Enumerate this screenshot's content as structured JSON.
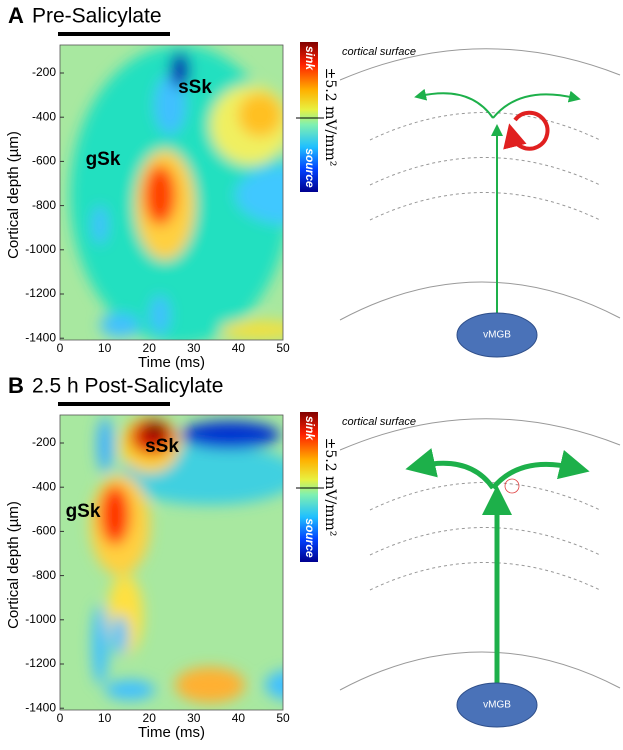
{
  "panels": [
    {
      "letter": "A",
      "title": "Pre-Salicylate",
      "y_label": "Cortical depth (µm)",
      "x_label": "Time (ms)",
      "yticks": [
        "-200",
        "-400",
        "-600",
        "-800",
        "-1000",
        "-1200",
        "-1400"
      ],
      "xticks": [
        "0",
        "10",
        "20",
        "30",
        "40",
        "50"
      ],
      "annotations": [
        "sSk",
        "gSk"
      ],
      "colorbar": {
        "top": "sink",
        "bottom": "source",
        "scale": "±5.2 mV/mm²"
      },
      "diagram": {
        "surface": "cortical surface",
        "node": "vMGB"
      }
    },
    {
      "letter": "B",
      "title": "2.5 h Post-Salicylate",
      "y_label": "Cortical depth (µm)",
      "x_label": "Time (ms)",
      "yticks": [
        "-200",
        "-400",
        "-600",
        "-800",
        "-1000",
        "-1200",
        "-1400"
      ],
      "xticks": [
        "0",
        "10",
        "20",
        "30",
        "40",
        "50"
      ],
      "annotations": [
        "sSk",
        "gSk"
      ],
      "colorbar": {
        "top": "sink",
        "bottom": "source",
        "scale": "±5.2 mV/mm²"
      },
      "diagram": {
        "surface": "cortical surface",
        "node": "vMGB"
      }
    }
  ]
}
